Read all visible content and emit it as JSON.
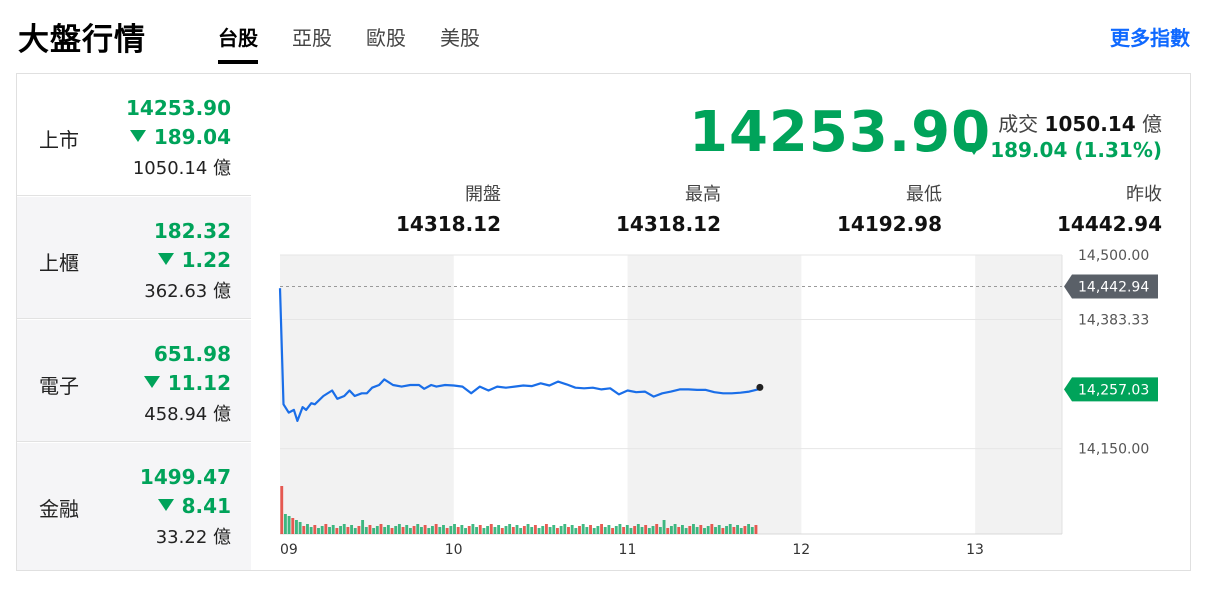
{
  "header": {
    "title": "大盤行情",
    "tabs": [
      {
        "label": "台股",
        "active": true
      },
      {
        "label": "亞股",
        "active": false
      },
      {
        "label": "歐股",
        "active": false
      },
      {
        "label": "美股",
        "active": false
      }
    ],
    "more_link": "更多指數"
  },
  "sidebar": {
    "items": [
      {
        "name": "上市",
        "price": "14253.90",
        "change": "189.04",
        "volume": "1050.14 億",
        "active": true
      },
      {
        "name": "上櫃",
        "price": "182.32",
        "change": "1.22",
        "volume": "362.63 億",
        "active": false
      },
      {
        "name": "電子",
        "price": "651.98",
        "change": "11.12",
        "volume": "458.94 億",
        "active": false
      },
      {
        "name": "金融",
        "price": "1499.47",
        "change": "8.41",
        "volume": "33.22 億",
        "active": false
      }
    ]
  },
  "summary": {
    "price": "14253.90",
    "volume_label": "成交",
    "volume_value": "1050.14",
    "volume_unit": "億",
    "change_text": "189.04 (1.31%)"
  },
  "stats": [
    {
      "label": "開盤",
      "value": "14318.12"
    },
    {
      "label": "最高",
      "value": "14318.12"
    },
    {
      "label": "最低",
      "value": "14192.98"
    },
    {
      "label": "昨收",
      "value": "14442.94"
    }
  ],
  "colors": {
    "down": "#00a35a",
    "up": "#e0261b",
    "line": "#1a6ee8",
    "accent": "#0f69ff",
    "prev_close_tag": "#5a6068"
  },
  "chart_data": {
    "type": "line",
    "x_ticks": [
      "09",
      "10",
      "11",
      "12",
      "13"
    ],
    "y_ticks": [
      "14,500.00",
      "14,383.33",
      "14,150.00"
    ],
    "ylim": [
      14116.67,
      14500
    ],
    "xlim": [
      9,
      13.5
    ],
    "prev_close": 14442.94,
    "prev_close_label": "14,442.94",
    "last_label": "14,257.03",
    "series": [
      {
        "x": [
          9.0,
          9.02,
          9.05,
          9.08,
          9.1,
          9.13,
          9.15,
          9.18,
          9.2,
          9.25,
          9.3,
          9.33,
          9.37,
          9.4,
          9.43,
          9.47,
          9.5,
          9.53,
          9.57,
          9.6,
          9.65,
          9.7,
          9.75,
          9.8,
          9.83,
          9.87,
          9.9,
          9.95,
          10.0,
          10.05,
          10.1,
          10.15,
          10.2,
          10.25,
          10.3,
          10.35,
          10.4,
          10.45,
          10.5,
          10.55,
          10.6,
          10.65,
          10.7,
          10.75,
          10.8,
          10.85,
          10.9,
          10.95,
          11.0,
          11.05,
          11.1,
          11.15,
          11.2,
          11.25,
          11.3,
          11.35,
          11.4,
          11.45,
          11.5,
          11.55,
          11.6,
          11.65,
          11.7,
          11.75
        ],
        "values": [
          14440,
          14230,
          14215,
          14220,
          14200,
          14225,
          14220,
          14232,
          14230,
          14245,
          14255,
          14240,
          14245,
          14255,
          14245,
          14250,
          14250,
          14260,
          14265,
          14275,
          14265,
          14262,
          14265,
          14265,
          14258,
          14265,
          14262,
          14265,
          14264,
          14262,
          14250,
          14262,
          14255,
          14262,
          14260,
          14262,
          14264,
          14263,
          14268,
          14264,
          14271,
          14266,
          14260,
          14259,
          14260,
          14257,
          14259,
          14248,
          14255,
          14252,
          14253,
          14244,
          14250,
          14253,
          14257,
          14257,
          14256,
          14256,
          14252,
          14250,
          14250,
          14251,
          14253,
          14257
        ]
      }
    ],
    "volume_bars": 130
  }
}
